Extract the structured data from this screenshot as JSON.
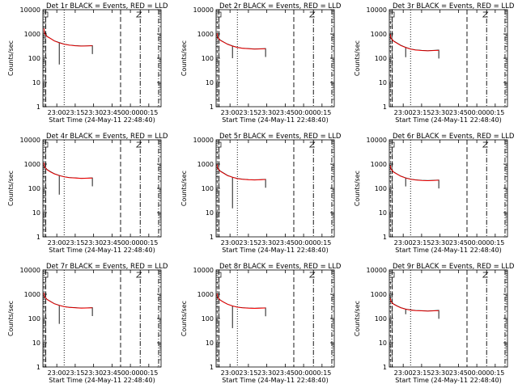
{
  "figure": {
    "background": "#ffffff",
    "panel_titles": [
      "Det 1r BLACK = Events, RED = LLD",
      "Det 2r BLACK = Events, RED = LLD",
      "Det 3r BLACK = Events, RED = LLD",
      "Det 4r BLACK = Events, RED = LLD",
      "Det 5r BLACK = Events, RED = LLD",
      "Det 6r BLACK = Events, RED = LLD",
      "Det 7r BLACK = Events, RED = LLD",
      "Det 8r BLACK = Events, RED = LLD",
      "Det 9r BLACK = Events, RED = LLD"
    ],
    "colors": {
      "events": "#000000",
      "lld": "#ff0000",
      "axes": "#000000"
    }
  },
  "chart_data": [
    {
      "type": "line",
      "title": "Det 1r BLACK = Events, RED = LLD",
      "xlabel": "Start Time (24-May-11 22:48:40)",
      "ylabel": "Counts/sec",
      "y_scale": "log",
      "ylim": [
        1,
        10000
      ],
      "xlim": [
        "22:48:40",
        "00:25"
      ],
      "x_ticks": [
        "23:00",
        "23:15",
        "23:30",
        "23:45",
        "00:00",
        "00:15"
      ],
      "y_ticks": [
        "1",
        "10",
        "100",
        "1000",
        "10000"
      ],
      "series": [
        {
          "name": "Events",
          "color": "#000000",
          "x": [
            "22:49:30",
            "22:50",
            "22:52",
            "22:55",
            "22:58",
            "23:02",
            "23:06",
            "23:10",
            "23:15",
            "23:20",
            "23:25",
            "23:29"
          ],
          "y": [
            1800,
            1100,
            800,
            650,
            520,
            440,
            380,
            350,
            330,
            320,
            325,
            330
          ]
        },
        {
          "name": "LLD",
          "color": "#ff0000",
          "x": [
            "22:49:30",
            "22:50",
            "22:52",
            "22:55",
            "22:58",
            "23:02",
            "23:06",
            "23:10",
            "23:15",
            "23:20",
            "23:25",
            "23:29"
          ],
          "y": [
            1700,
            1050,
            780,
            640,
            510,
            430,
            375,
            345,
            325,
            315,
            320,
            325
          ]
        }
      ],
      "dip": {
        "x": "23:02",
        "y": 55
      },
      "vertical_markers": {
        "dashed": [
          "22:51",
          "23:52"
        ],
        "dotted": [
          "23:06"
        ],
        "dash_dot": [
          "00:08",
          "00:23"
        ]
      }
    },
    {
      "type": "line",
      "title": "Det 2r BLACK = Events, RED = LLD",
      "xlabel": "Start Time (24-May-11 22:48:40)",
      "ylabel": "Counts/sec",
      "y_scale": "log",
      "ylim": [
        1,
        10000
      ],
      "xlim": [
        "22:48:40",
        "00:25"
      ],
      "x_ticks": [
        "23:00",
        "23:15",
        "23:30",
        "23:45",
        "00:00",
        "00:15"
      ],
      "y_ticks": [
        "1",
        "10",
        "100",
        "1000",
        "10000"
      ],
      "series": [
        {
          "name": "Events",
          "color": "#000000",
          "x": [
            "22:49:30",
            "22:50",
            "22:52",
            "22:55",
            "22:58",
            "23:02",
            "23:06",
            "23:10",
            "23:15",
            "23:20",
            "23:25",
            "23:29"
          ],
          "y": [
            1100,
            750,
            560,
            460,
            380,
            320,
            280,
            260,
            250,
            240,
            245,
            250
          ]
        },
        {
          "name": "LLD",
          "color": "#ff0000",
          "x": [
            "22:49:30",
            "22:50",
            "22:52",
            "22:55",
            "22:58",
            "23:02",
            "23:06",
            "23:10",
            "23:15",
            "23:20",
            "23:25",
            "23:29"
          ],
          "y": [
            1050,
            720,
            545,
            450,
            372,
            315,
            276,
            256,
            246,
            236,
            241,
            246
          ]
        }
      ],
      "dip": {
        "x": "23:02",
        "y": 100
      },
      "vertical_markers": {
        "dashed": [
          "22:51",
          "23:52"
        ],
        "dotted": [
          "23:06"
        ],
        "dash_dot": [
          "00:08",
          "00:23"
        ]
      }
    },
    {
      "type": "line",
      "title": "Det 3r BLACK = Events, RED = LLD",
      "xlabel": "Start Time (24-May-11 22:48:40)",
      "ylabel": "Counts/sec",
      "y_scale": "log",
      "ylim": [
        1,
        10000
      ],
      "xlim": [
        "22:48:40",
        "00:25"
      ],
      "x_ticks": [
        "23:00",
        "23:15",
        "23:30",
        "23:45",
        "00:00",
        "00:15"
      ],
      "y_ticks": [
        "1",
        "10",
        "100",
        "1000",
        "10000"
      ],
      "series": [
        {
          "name": "Events",
          "color": "#000000",
          "x": [
            "22:49:30",
            "22:50",
            "22:52",
            "22:55",
            "22:58",
            "23:02",
            "23:06",
            "23:10",
            "23:15",
            "23:20",
            "23:25",
            "23:29"
          ],
          "y": [
            1000,
            700,
            520,
            420,
            340,
            280,
            240,
            220,
            210,
            205,
            210,
            215
          ]
        },
        {
          "name": "LLD",
          "color": "#ff0000",
          "x": [
            "22:49:30",
            "22:50",
            "22:52",
            "22:55",
            "22:58",
            "23:02",
            "23:06",
            "23:10",
            "23:15",
            "23:20",
            "23:25",
            "23:29"
          ],
          "y": [
            960,
            680,
            505,
            410,
            332,
            275,
            236,
            216,
            206,
            201,
            206,
            211
          ]
        }
      ],
      "dip": {
        "x": "23:02",
        "y": 110
      },
      "vertical_markers": {
        "dashed": [
          "22:51",
          "23:52"
        ],
        "dotted": [
          "23:06"
        ],
        "dash_dot": [
          "00:08",
          "00:23"
        ]
      }
    },
    {
      "type": "line",
      "title": "Det 4r BLACK = Events, RED = LLD",
      "xlabel": "Start Time (24-May-11 22:48:40)",
      "ylabel": "Counts/sec",
      "y_scale": "log",
      "ylim": [
        1,
        10000
      ],
      "xlim": [
        "22:48:40",
        "00:25"
      ],
      "x_ticks": [
        "23:00",
        "23:15",
        "23:30",
        "23:45",
        "00:00",
        "00:15"
      ],
      "y_ticks": [
        "1",
        "10",
        "100",
        "1000",
        "10000"
      ],
      "series": [
        {
          "name": "Events",
          "color": "#000000",
          "x": [
            "22:49:30",
            "22:50",
            "22:52",
            "22:55",
            "22:58",
            "23:02",
            "23:06",
            "23:10",
            "23:15",
            "23:20",
            "23:25",
            "23:29"
          ],
          "y": [
            1200,
            800,
            600,
            480,
            400,
            340,
            300,
            280,
            270,
            260,
            265,
            270
          ]
        },
        {
          "name": "LLD",
          "color": "#ff0000",
          "x": [
            "22:49:30",
            "22:50",
            "22:52",
            "22:55",
            "22:58",
            "23:02",
            "23:06",
            "23:10",
            "23:15",
            "23:20",
            "23:25",
            "23:29"
          ],
          "y": [
            1150,
            780,
            585,
            470,
            392,
            335,
            296,
            276,
            266,
            256,
            261,
            266
          ]
        }
      ],
      "dip": {
        "x": "23:02",
        "y": 55
      },
      "vertical_markers": {
        "dashed": [
          "22:51",
          "23:52"
        ],
        "dotted": [
          "23:06"
        ],
        "dash_dot": [
          "00:08",
          "00:23"
        ]
      }
    },
    {
      "type": "line",
      "title": "Det 5r BLACK = Events, RED = LLD",
      "xlabel": "Start Time (24-May-11 22:48:40)",
      "ylabel": "Counts/sec",
      "y_scale": "log",
      "ylim": [
        1,
        10000
      ],
      "xlim": [
        "22:48:40",
        "00:25"
      ],
      "x_ticks": [
        "23:00",
        "23:15",
        "23:30",
        "23:45",
        "00:00",
        "00:15"
      ],
      "y_ticks": [
        "1",
        "10",
        "100",
        "1000",
        "10000"
      ],
      "series": [
        {
          "name": "Events",
          "color": "#000000",
          "x": [
            "22:49:30",
            "22:50",
            "22:52",
            "22:55",
            "22:58",
            "23:02",
            "23:06",
            "23:10",
            "23:15",
            "23:20",
            "23:25",
            "23:29"
          ],
          "y": [
            1000,
            700,
            520,
            420,
            340,
            290,
            255,
            240,
            230,
            225,
            230,
            235
          ]
        },
        {
          "name": "LLD",
          "color": "#ff0000",
          "x": [
            "22:49:30",
            "22:50",
            "22:52",
            "22:55",
            "22:58",
            "23:02",
            "23:06",
            "23:10",
            "23:15",
            "23:20",
            "23:25",
            "23:29"
          ],
          "y": [
            960,
            680,
            505,
            410,
            332,
            285,
            251,
            236,
            226,
            221,
            226,
            231
          ]
        }
      ],
      "dip": {
        "x": "23:02",
        "y": 15
      },
      "vertical_markers": {
        "dashed": [
          "22:51",
          "23:52"
        ],
        "dotted": [
          "23:06"
        ],
        "dash_dot": [
          "00:08",
          "00:23"
        ]
      }
    },
    {
      "type": "line",
      "title": "Det 6r BLACK = Events, RED = LLD",
      "xlabel": "Start Time (24-May-11 22:48:40)",
      "ylabel": "Counts/sec",
      "y_scale": "log",
      "ylim": [
        1,
        10000
      ],
      "xlim": [
        "22:48:40",
        "00:25"
      ],
      "x_ticks": [
        "23:00",
        "23:15",
        "23:30",
        "23:45",
        "00:00",
        "00:15"
      ],
      "y_ticks": [
        "1",
        "10",
        "100",
        "1000",
        "10000"
      ],
      "series": [
        {
          "name": "Events",
          "color": "#000000",
          "x": [
            "22:49:30",
            "22:50",
            "22:52",
            "22:55",
            "22:58",
            "23:02",
            "23:06",
            "23:10",
            "23:15",
            "23:20",
            "23:25",
            "23:29"
          ],
          "y": [
            900,
            650,
            480,
            390,
            320,
            270,
            240,
            225,
            215,
            210,
            215,
            220
          ]
        },
        {
          "name": "LLD",
          "color": "#ff0000",
          "x": [
            "22:49:30",
            "22:50",
            "22:52",
            "22:55",
            "22:58",
            "23:02",
            "23:06",
            "23:10",
            "23:15",
            "23:20",
            "23:25",
            "23:29"
          ],
          "y": [
            870,
            630,
            468,
            382,
            314,
            266,
            236,
            221,
            211,
            206,
            211,
            216
          ]
        }
      ],
      "dip": {
        "x": "23:02",
        "y": 120
      },
      "vertical_markers": {
        "dashed": [
          "22:51",
          "23:52"
        ],
        "dotted": [
          "23:06"
        ],
        "dash_dot": [
          "00:08",
          "00:23"
        ]
      }
    },
    {
      "type": "line",
      "title": "Det 7r BLACK = Events, RED = LLD",
      "xlabel": "Start Time (24-May-11 22:48:40)",
      "ylabel": "Counts/sec",
      "y_scale": "log",
      "ylim": [
        1,
        10000
      ],
      "xlim": [
        "22:48:40",
        "00:25"
      ],
      "x_ticks": [
        "23:00",
        "23:15",
        "23:30",
        "23:45",
        "00:00",
        "00:15"
      ],
      "y_ticks": [
        "1",
        "10",
        "100",
        "1000",
        "10000"
      ],
      "series": [
        {
          "name": "Events",
          "color": "#000000",
          "x": [
            "22:49:30",
            "22:50",
            "22:52",
            "22:55",
            "22:58",
            "23:02",
            "23:06",
            "23:10",
            "23:15",
            "23:20",
            "23:25",
            "23:29"
          ],
          "y": [
            1200,
            820,
            620,
            500,
            410,
            350,
            310,
            290,
            280,
            270,
            275,
            280
          ]
        },
        {
          "name": "LLD",
          "color": "#ff0000",
          "x": [
            "22:49:30",
            "22:50",
            "22:52",
            "22:55",
            "22:58",
            "23:02",
            "23:06",
            "23:10",
            "23:15",
            "23:20",
            "23:25",
            "23:29"
          ],
          "y": [
            1150,
            800,
            605,
            490,
            402,
            345,
            306,
            286,
            276,
            266,
            271,
            276
          ]
        }
      ],
      "dip": {
        "x": "23:02",
        "y": 60
      },
      "vertical_markers": {
        "dashed": [
          "22:51",
          "23:52"
        ],
        "dotted": [
          "23:06"
        ],
        "dash_dot": [
          "00:08",
          "00:23"
        ]
      }
    },
    {
      "type": "line",
      "title": "Det 8r BLACK = Events, RED = LLD",
      "xlabel": "Start Time (24-May-11 22:48:40)",
      "ylabel": "Counts/sec",
      "y_scale": "log",
      "ylim": [
        1,
        10000
      ],
      "xlim": [
        "22:48:40",
        "00:25"
      ],
      "x_ticks": [
        "23:00",
        "23:15",
        "23:30",
        "23:45",
        "00:00",
        "00:15"
      ],
      "y_ticks": [
        "1",
        "10",
        "100",
        "1000",
        "10000"
      ],
      "series": [
        {
          "name": "Events",
          "color": "#000000",
          "x": [
            "22:49:30",
            "22:50",
            "22:52",
            "22:55",
            "22:58",
            "23:02",
            "23:06",
            "23:10",
            "23:15",
            "23:20",
            "23:25",
            "23:29"
          ],
          "y": [
            1100,
            760,
            580,
            470,
            390,
            330,
            295,
            280,
            270,
            265,
            270,
            275
          ]
        },
        {
          "name": "LLD",
          "color": "#ff0000",
          "x": [
            "22:49:30",
            "22:50",
            "22:52",
            "22:55",
            "22:58",
            "23:02",
            "23:06",
            "23:10",
            "23:15",
            "23:20",
            "23:25",
            "23:29"
          ],
          "y": [
            1060,
            740,
            568,
            462,
            384,
            326,
            291,
            276,
            266,
            261,
            266,
            271
          ]
        }
      ],
      "dip": {
        "x": "23:02",
        "y": 40
      },
      "vertical_markers": {
        "dashed": [
          "22:51",
          "23:52"
        ],
        "dotted": [
          "23:06"
        ],
        "dash_dot": [
          "00:08",
          "00:23"
        ]
      }
    },
    {
      "type": "line",
      "title": "Det 9r BLACK = Events, RED = LLD",
      "xlabel": "Start Time (24-May-11 22:48:40)",
      "ylabel": "Counts/sec",
      "y_scale": "log",
      "ylim": [
        1,
        10000
      ],
      "xlim": [
        "22:48:40",
        "00:25"
      ],
      "x_ticks": [
        "23:00",
        "23:15",
        "23:30",
        "23:45",
        "00:00",
        "00:15"
      ],
      "y_ticks": [
        "1",
        "10",
        "100",
        "1000",
        "10000"
      ],
      "series": [
        {
          "name": "Events",
          "color": "#000000",
          "x": [
            "22:49:30",
            "22:50",
            "22:52",
            "22:55",
            "22:58",
            "23:02",
            "23:06",
            "23:10",
            "23:15",
            "23:20",
            "23:25",
            "23:29"
          ],
          "y": [
            700,
            520,
            400,
            330,
            280,
            245,
            225,
            215,
            210,
            205,
            210,
            215
          ]
        },
        {
          "name": "LLD",
          "color": "#ff0000",
          "x": [
            "22:49:30",
            "22:50",
            "22:52",
            "22:55",
            "22:58",
            "23:02",
            "23:06",
            "23:10",
            "23:15",
            "23:20",
            "23:25",
            "23:29"
          ],
          "y": [
            680,
            505,
            390,
            322,
            274,
            241,
            221,
            211,
            206,
            201,
            206,
            211
          ]
        }
      ],
      "dip": {
        "x": "23:02",
        "y": 150
      },
      "vertical_markers": {
        "dashed": [
          "22:51",
          "23:52"
        ],
        "dotted": [
          "23:06"
        ],
        "dash_dot": [
          "00:08",
          "00:23"
        ]
      }
    }
  ]
}
